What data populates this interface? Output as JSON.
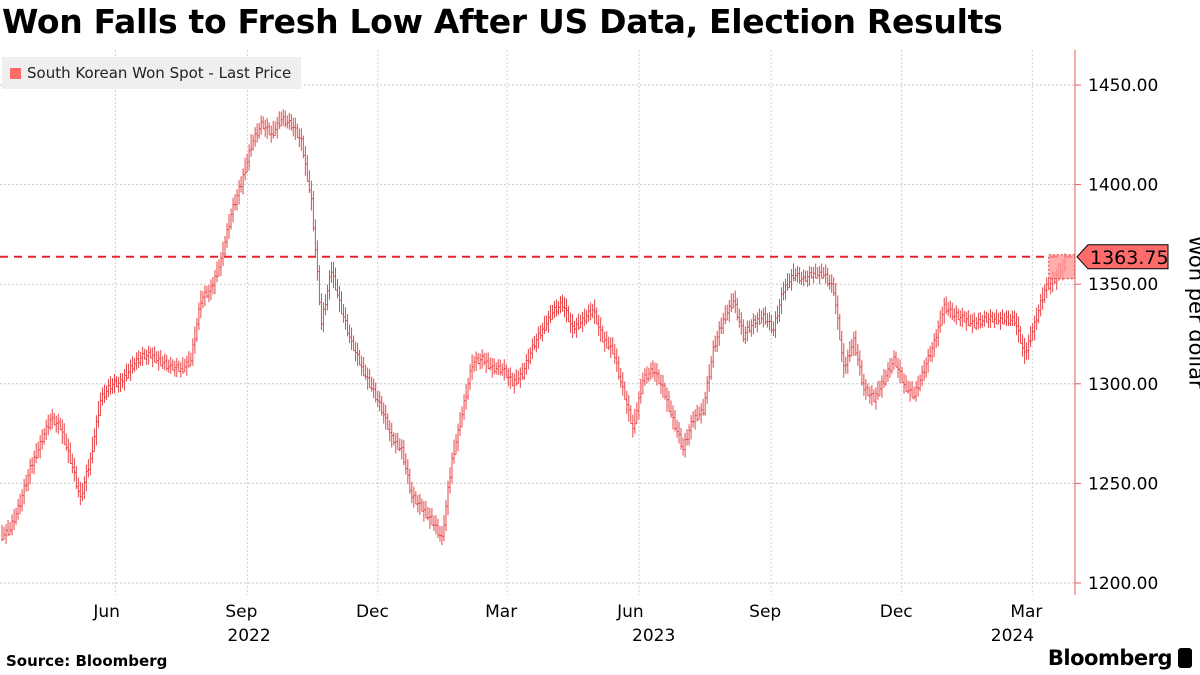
{
  "title": "Won Falls to Fresh Low After US Data, Election Results",
  "source": "Source: Bloomberg",
  "brand": "Bloomberg",
  "chart_data": {
    "type": "line",
    "title": "Won Falls to Fresh Low After US Data, Election Results",
    "legend": [
      "South Korean Won Spot - Last Price"
    ],
    "legend_position": "top-left",
    "ylabel": "Won per dollar",
    "xlabel": "",
    "ylim": [
      1195,
      1475
    ],
    "y_ticks": [
      "1200.00",
      "1250.00",
      "1300.00",
      "1350.00",
      "1400.00",
      "1450.00"
    ],
    "x_ticks": [
      {
        "label": "Jun",
        "date": "2022-06-01"
      },
      {
        "label": "Sep",
        "date": "2022-09-01"
      },
      {
        "label": "Dec",
        "date": "2022-12-01"
      },
      {
        "label": "Mar",
        "date": "2023-03-01"
      },
      {
        "label": "Jun",
        "date": "2023-06-01"
      },
      {
        "label": "Sep",
        "date": "2023-09-01"
      },
      {
        "label": "Dec",
        "date": "2023-12-01"
      },
      {
        "label": "Mar",
        "date": "2024-03-01"
      }
    ],
    "year_labels": [
      {
        "label": "2022",
        "date": "2022-09-01"
      },
      {
        "label": "2023",
        "date": "2023-06-10"
      },
      {
        "label": "2024",
        "date": "2024-02-15"
      }
    ],
    "start_date": "2022-03-14",
    "frequency": "weekly",
    "last_price": "1363.75",
    "last_value": 1363.75,
    "grid": true,
    "colors": {
      "series": "#e8474a",
      "last": "#ff6b6b",
      "axis": "#f05a5a"
    },
    "values": [
      1227,
      1240,
      1257,
      1270,
      1282,
      1278,
      1262,
      1242,
      1262,
      1292,
      1299,
      1300,
      1308,
      1313,
      1314,
      1311,
      1308,
      1307,
      1312,
      1342,
      1347,
      1362,
      1385,
      1400,
      1420,
      1430,
      1425,
      1433,
      1430,
      1421,
      1392,
      1330,
      1357,
      1337,
      1320,
      1308,
      1298,
      1287,
      1272,
      1267,
      1243,
      1237,
      1231,
      1222,
      1262,
      1285,
      1310,
      1312,
      1308,
      1307,
      1300,
      1305,
      1318,
      1327,
      1336,
      1340,
      1327,
      1332,
      1337,
      1322,
      1317,
      1297,
      1277,
      1302,
      1307,
      1297,
      1282,
      1267,
      1282,
      1287,
      1317,
      1332,
      1342,
      1324,
      1330,
      1334,
      1327,
      1347,
      1355,
      1352,
      1355,
      1355,
      1347,
      1307,
      1322,
      1297,
      1292,
      1302,
      1312,
      1299,
      1294,
      1307,
      1320,
      1339,
      1334,
      1332,
      1330,
      1332,
      1332,
      1332,
      1332,
      1314,
      1330,
      1347,
      1352,
      1360
    ]
  }
}
